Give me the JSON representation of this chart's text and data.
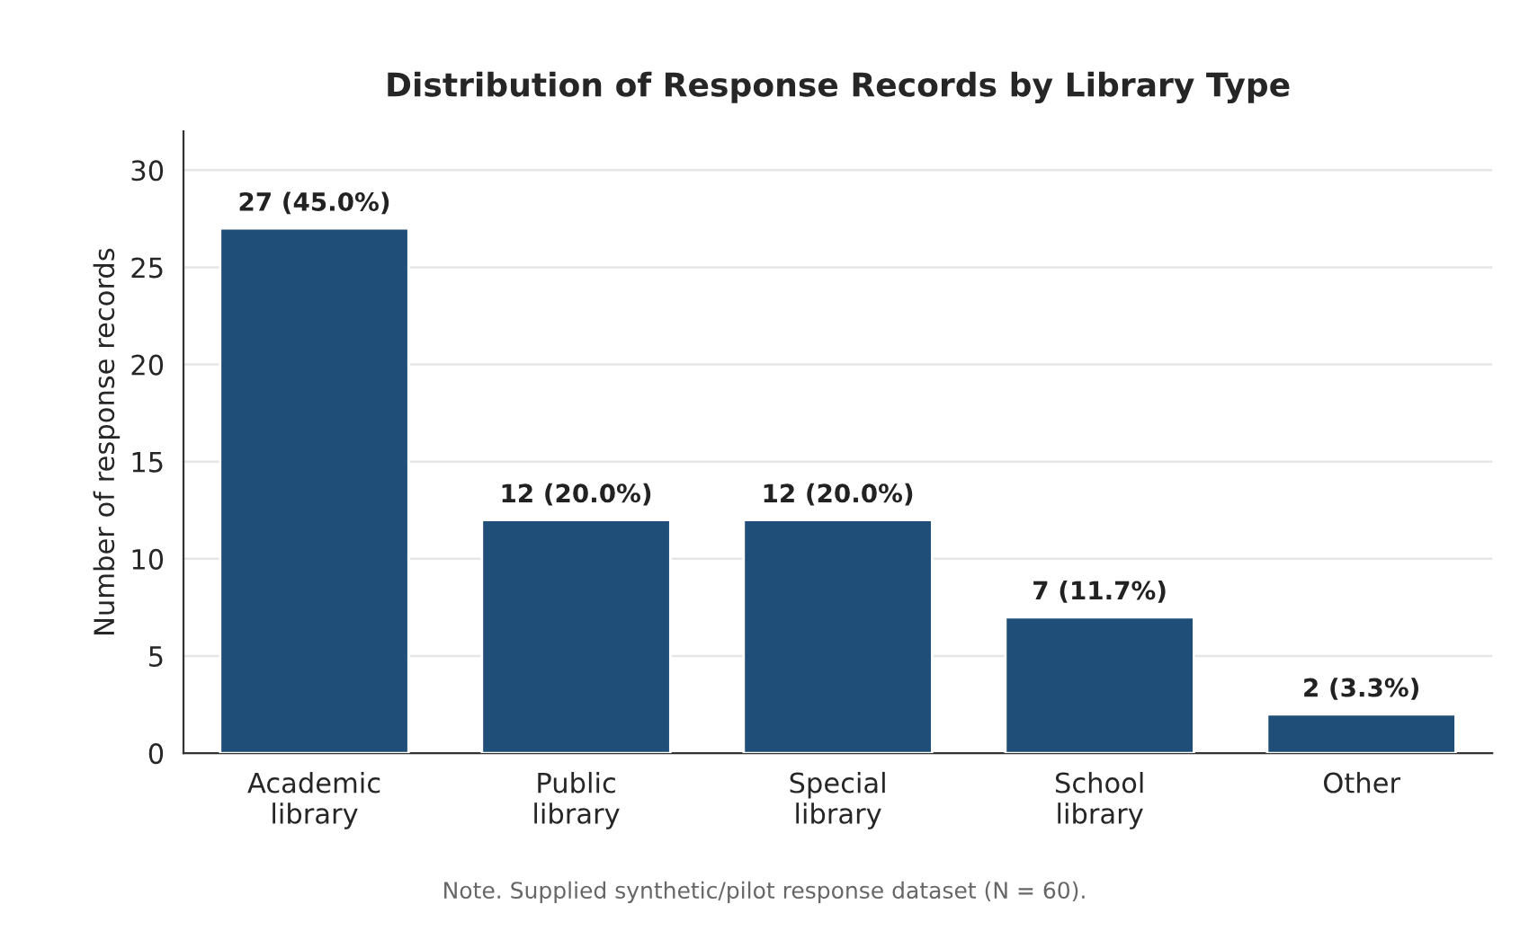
{
  "chart_data": {
    "type": "bar",
    "title": "Distribution of Response Records by Library Type",
    "ylabel": "Number of response records",
    "categories": [
      "Academic\nlibrary",
      "Public\nlibrary",
      "Special\nlibrary",
      "School\nlibrary",
      "Other"
    ],
    "values": [
      27,
      12,
      12,
      7,
      2
    ],
    "value_labels": [
      "27 (45.0%)",
      "12 (20.0%)",
      "12 (20.0%)",
      "7 (11.7%)",
      "2 (3.3%)"
    ],
    "color": "#1f4e79",
    "ylim": [
      0,
      32
    ],
    "yticks": [
      0,
      5,
      10,
      15,
      20,
      25,
      30
    ],
    "grid": "y",
    "annotations": [
      "Note. Supplied synthetic/pilot response dataset (N = 60)."
    ]
  }
}
